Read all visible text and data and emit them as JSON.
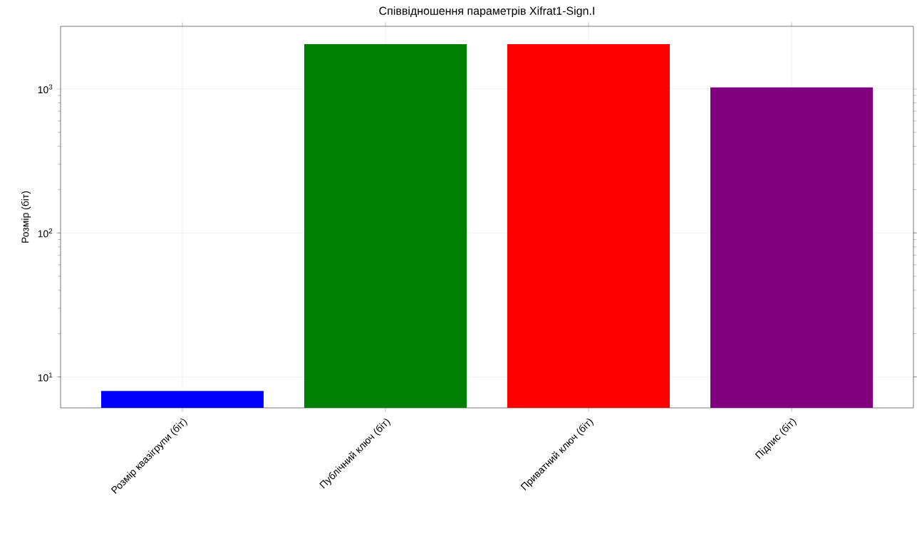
{
  "chart_data": {
    "type": "bar",
    "title": "Співвідношення параметрів Xifrat1-Sign.I",
    "ylabel": "Розмір (біт)",
    "categories": [
      "Розмір квазігрупи (біт)",
      "Публічний ключ (біт)",
      "Приватний ключ (біт)",
      "Підпис (біт)"
    ],
    "values": [
      8,
      2048,
      2048,
      1024
    ],
    "colors": [
      "#0000ff",
      "#008000",
      "#ff0000",
      "#800080"
    ],
    "log": "y",
    "ylim": [
      6.1,
      2720
    ],
    "yticks": [
      {
        "value": 10,
        "label": "10$^{1}$"
      },
      {
        "value": 100,
        "label": "10$^{2}$"
      },
      {
        "value": 1000,
        "label": "10$^{3}$"
      }
    ],
    "grid": true
  }
}
